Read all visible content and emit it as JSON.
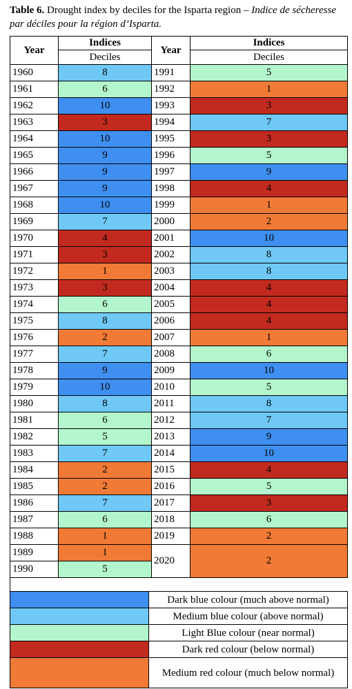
{
  "caption": {
    "label": "Table 6.",
    "text": " Drought index by deciles for the Isparta region – ",
    "text_fr": "Indice de sécheresse par déciles pour la région d’Isparta."
  },
  "headers": {
    "year": "Year",
    "indices": "Indices",
    "deciles": "Deciles"
  },
  "colors": {
    "dark_blue": "#3f8ff0",
    "medium_blue": "#6fc8f6",
    "light_blue": "#b3f5cc",
    "dark_red": "#c22a1f",
    "medium_red": "#f07a36"
  },
  "left_rows": [
    {
      "year": "1960",
      "decile": "8"
    },
    {
      "year": "1961",
      "decile": "6"
    },
    {
      "year": "1962",
      "decile": "10"
    },
    {
      "year": "1963",
      "decile": "3"
    },
    {
      "year": "1964",
      "decile": "10"
    },
    {
      "year": "1965",
      "decile": "9"
    },
    {
      "year": "1966",
      "decile": "9"
    },
    {
      "year": "1967",
      "decile": "9"
    },
    {
      "year": "1968",
      "decile": "10"
    },
    {
      "year": "1969",
      "decile": "7"
    },
    {
      "year": "1970",
      "decile": "4"
    },
    {
      "year": "1971",
      "decile": "3"
    },
    {
      "year": "1972",
      "decile": "1"
    },
    {
      "year": "1973",
      "decile": "3"
    },
    {
      "year": "1974",
      "decile": "6"
    },
    {
      "year": "1975",
      "decile": "8"
    },
    {
      "year": "1976",
      "decile": "2"
    },
    {
      "year": "1977",
      "decile": "7"
    },
    {
      "year": "1978",
      "decile": "9"
    },
    {
      "year": "1979",
      "decile": "10"
    },
    {
      "year": "1980",
      "decile": "8"
    },
    {
      "year": "1981",
      "decile": "6"
    },
    {
      "year": "1982",
      "decile": "5"
    },
    {
      "year": "1983",
      "decile": "7"
    },
    {
      "year": "1984",
      "decile": "2"
    },
    {
      "year": "1985",
      "decile": "2"
    },
    {
      "year": "1986",
      "decile": "7"
    },
    {
      "year": "1987",
      "decile": "6"
    },
    {
      "year": "1988",
      "decile": "1"
    },
    {
      "year": "1989",
      "decile": "1"
    },
    {
      "year": "1990",
      "decile": "5"
    }
  ],
  "right_rows": [
    {
      "year": "1991",
      "decile": "5"
    },
    {
      "year": "1992",
      "decile": "1"
    },
    {
      "year": "1993",
      "decile": "3"
    },
    {
      "year": "1994",
      "decile": "7"
    },
    {
      "year": "1995",
      "decile": "3"
    },
    {
      "year": "1996",
      "decile": "5"
    },
    {
      "year": "1997",
      "decile": "9"
    },
    {
      "year": "1998",
      "decile": "4"
    },
    {
      "year": "1999",
      "decile": "1"
    },
    {
      "year": "2000",
      "decile": "2"
    },
    {
      "year": "2001",
      "decile": "10"
    },
    {
      "year": "2002",
      "decile": "8"
    },
    {
      "year": "2003",
      "decile": "8"
    },
    {
      "year": "2004",
      "decile": "4"
    },
    {
      "year": "2005",
      "decile": "4"
    },
    {
      "year": "2006",
      "decile": "4"
    },
    {
      "year": "2007",
      "decile": "1"
    },
    {
      "year": "2008",
      "decile": "6"
    },
    {
      "year": "2009",
      "decile": "10"
    },
    {
      "year": "2010",
      "decile": "5"
    },
    {
      "year": "2011",
      "decile": "8"
    },
    {
      "year": "2012",
      "decile": "7"
    },
    {
      "year": "2013",
      "decile": "9"
    },
    {
      "year": "2014",
      "decile": "10"
    },
    {
      "year": "2015",
      "decile": "4"
    },
    {
      "year": "2016",
      "decile": "5"
    },
    {
      "year": "2017",
      "decile": "3"
    },
    {
      "year": "2018",
      "decile": "6"
    },
    {
      "year": "2019",
      "decile": "2"
    },
    {
      "year": "2020",
      "decile": "2"
    }
  ],
  "legend": [
    {
      "color": "dark_blue",
      "text": "Dark blue colour (much above normal)"
    },
    {
      "color": "medium_blue",
      "text": "Medium blue colour (above normal)"
    },
    {
      "color": "light_blue",
      "text": "Light Blue colour (near normal)"
    },
    {
      "color": "dark_red",
      "text": "Dark red colour (below normal)"
    },
    {
      "color": "medium_red",
      "text": "Medium red colour (much below normal)"
    }
  ]
}
